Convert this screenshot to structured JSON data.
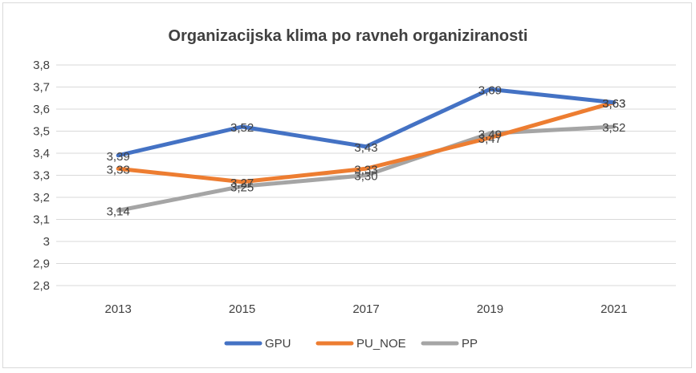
{
  "chart_data": {
    "type": "line",
    "title": "Organizacijska klima po ravneh organiziranosti",
    "xlabel": "",
    "ylabel": "",
    "categories": [
      "2013",
      "2015",
      "2017",
      "2019",
      "2021"
    ],
    "ylim": [
      2.8,
      3.8
    ],
    "yticks": [
      "2,8",
      "2,9",
      "3",
      "3,1",
      "3,2",
      "3,3",
      "3,4",
      "3,5",
      "3,6",
      "3,7",
      "3,8"
    ],
    "grid": true,
    "legend_position": "bottom",
    "series": [
      {
        "name": "GPU",
        "color": "#4472c4",
        "values": [
          3.39,
          3.52,
          3.43,
          3.69,
          3.63
        ],
        "labels": [
          "3,39",
          "3,52",
          "3,43",
          "3,69",
          "3,63"
        ]
      },
      {
        "name": "PU_NOE",
        "color": "#ed7d31",
        "values": [
          3.33,
          3.27,
          3.33,
          3.47,
          3.63
        ],
        "labels": [
          "3,33",
          "3,27",
          "3,33",
          "3,47",
          "3,63"
        ]
      },
      {
        "name": "PP",
        "color": "#a5a5a5",
        "values": [
          3.14,
          3.25,
          3.3,
          3.49,
          3.52
        ],
        "labels": [
          "3,14",
          "3,25",
          "3,30",
          "3,49",
          "3,52"
        ]
      }
    ]
  }
}
